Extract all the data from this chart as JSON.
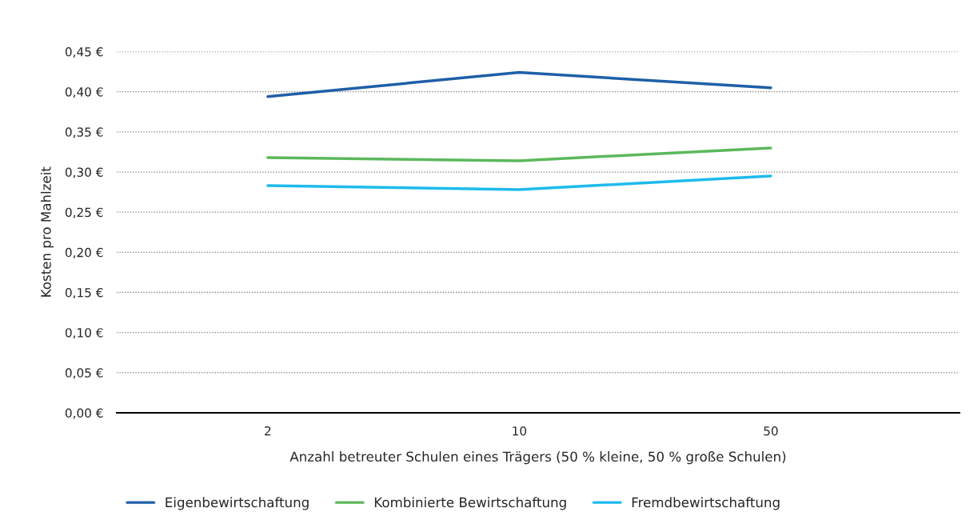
{
  "chart_data": {
    "type": "line",
    "xlabel": "Anzahl betreuter Schulen eines Trägers (50 % kleine, 50 % große Schulen)",
    "ylabel": "Kosten pro Mahlzeit",
    "categories": [
      "2",
      "10",
      "50"
    ],
    "series": [
      {
        "name": "Eigenbewirtschaftung",
        "color": "#1f5fa8",
        "values": [
          0.394,
          0.424,
          0.405
        ]
      },
      {
        "name": "Kombinierte Bewirtschaftung",
        "color": "#5cb85c",
        "values": [
          0.318,
          0.314,
          0.33
        ]
      },
      {
        "name": "Fremdbewirtschaftung",
        "color": "#1ebbee",
        "values": [
          0.283,
          0.278,
          0.295
        ]
      }
    ],
    "ylim": [
      0,
      0.45
    ],
    "yticks": [
      {
        "value": 0,
        "label": "0,00 €"
      },
      {
        "value": 0.05,
        "label": "0,05 €"
      },
      {
        "value": 0.1,
        "label": "0,10 €"
      },
      {
        "value": 0.15,
        "label": "0,15 €"
      },
      {
        "value": 0.2,
        "label": "0,20 €"
      },
      {
        "value": 0.25,
        "label": "0,25 €"
      },
      {
        "value": 0.3,
        "label": "0,30 €"
      },
      {
        "value": 0.35,
        "label": "0,35 €"
      },
      {
        "value": 0.4,
        "label": "0,40 €"
      },
      {
        "value": 0.45,
        "label": "0,45 €"
      }
    ],
    "grid": "y",
    "legend": "bottom",
    "line_style": "solid"
  }
}
